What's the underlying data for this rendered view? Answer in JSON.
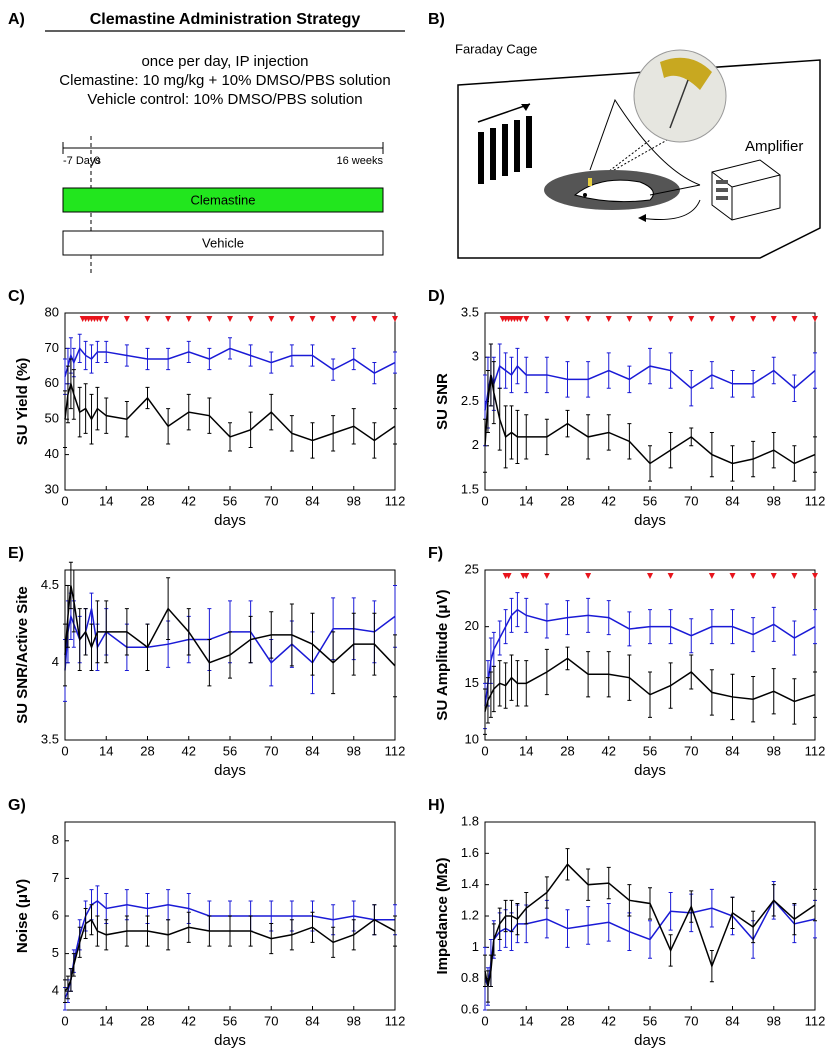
{
  "panel_a": {
    "label": "A)",
    "title": "Clemastine Administration Strategy",
    "lines": [
      "once per day, IP injection",
      "Clemastine: 10 mg/kg + 10% DMSO/PBS solution",
      "Vehicle control: 10% DMSO/PBS solution"
    ],
    "timeline": {
      "start": "-7 Days",
      "zero": "0",
      "end": "16 weeks"
    },
    "bars": [
      "Clemastine",
      "Vehicle"
    ]
  },
  "panel_b": {
    "label": "B)",
    "cage": "Faraday Cage",
    "amplifier": "Amplifier"
  },
  "chart_data": [
    {
      "type": "line",
      "panel_label": "C)",
      "y_label": "SU Yield (%)",
      "x_label": "days",
      "x": [
        0,
        1,
        2,
        3,
        5,
        7,
        9,
        11,
        14,
        21,
        28,
        35,
        42,
        49,
        56,
        63,
        70,
        77,
        84,
        91,
        98,
        105,
        112
      ],
      "xlim": [
        0,
        112
      ],
      "xticks": [
        0,
        14,
        28,
        42,
        56,
        70,
        84,
        98,
        112
      ],
      "ylim": [
        30,
        80
      ],
      "yticks": [
        30,
        40,
        50,
        60,
        70,
        80
      ],
      "series": [
        {
          "color": "#1a1ad6",
          "values": [
            62,
            65,
            68,
            66,
            70,
            68,
            67,
            69,
            69,
            68,
            67,
            67,
            69,
            67,
            70,
            68,
            66,
            68,
            68,
            64,
            67,
            63,
            66
          ],
          "errors": [
            5,
            5,
            5,
            4,
            4,
            4,
            4,
            3,
            3,
            3,
            3,
            3,
            3,
            3,
            3,
            3,
            3,
            3,
            3,
            3,
            3,
            3,
            3
          ]
        },
        {
          "color": "#000000",
          "values": [
            50,
            57,
            60,
            57,
            52,
            53,
            50,
            53,
            51,
            50,
            56,
            48,
            52,
            51,
            45,
            47,
            52,
            46,
            44,
            46,
            48,
            44,
            48
          ],
          "errors": [
            8,
            8,
            7,
            7,
            7,
            7,
            7,
            6,
            5,
            5,
            3,
            5,
            5,
            5,
            4,
            5,
            5,
            5,
            5,
            5,
            5,
            5,
            5
          ]
        }
      ],
      "markers": {
        "color": "#e8141c",
        "x": [
          6,
          7,
          8,
          9,
          10,
          11,
          12,
          14,
          21,
          28,
          35,
          42,
          49,
          56,
          63,
          70,
          77,
          84,
          91,
          98,
          105,
          112
        ]
      }
    },
    {
      "type": "line",
      "panel_label": "D)",
      "y_label": "SU SNR",
      "x_label": "days",
      "x": [
        0,
        1,
        2,
        3,
        5,
        7,
        9,
        11,
        14,
        21,
        28,
        35,
        42,
        49,
        56,
        63,
        70,
        77,
        84,
        91,
        98,
        105,
        112
      ],
      "xlim": [
        0,
        112
      ],
      "xticks": [
        0,
        14,
        28,
        42,
        56,
        70,
        84,
        98,
        112
      ],
      "ylim": [
        1.5,
        3.5
      ],
      "yticks": [
        1.5,
        2,
        2.5,
        3,
        3.5
      ],
      "series": [
        {
          "color": "#1a1ad6",
          "values": [
            2.4,
            2.6,
            2.8,
            2.7,
            2.9,
            2.85,
            2.8,
            2.9,
            2.8,
            2.8,
            2.75,
            2.75,
            2.85,
            2.75,
            2.9,
            2.85,
            2.65,
            2.8,
            2.7,
            2.7,
            2.85,
            2.65,
            2.85
          ],
          "errors": [
            0.4,
            0.4,
            0.35,
            0.3,
            0.25,
            0.2,
            0.2,
            0.2,
            0.2,
            0.2,
            0.2,
            0.2,
            0.2,
            0.15,
            0.2,
            0.2,
            0.2,
            0.15,
            0.15,
            0.15,
            0.15,
            0.15,
            0.2
          ]
        },
        {
          "color": "#000000",
          "values": [
            2.0,
            2.5,
            2.8,
            2.6,
            2.3,
            2.1,
            2.15,
            2.1,
            2.1,
            2.1,
            2.25,
            2.1,
            2.15,
            2.05,
            1.8,
            1.95,
            2.1,
            1.9,
            1.8,
            1.85,
            1.95,
            1.8,
            1.9
          ],
          "errors": [
            0.3,
            0.35,
            0.35,
            0.35,
            0.35,
            0.35,
            0.3,
            0.3,
            0.25,
            0.2,
            0.15,
            0.25,
            0.2,
            0.2,
            0.2,
            0.2,
            0.1,
            0.25,
            0.2,
            0.2,
            0.2,
            0.2,
            0.2
          ]
        }
      ],
      "markers": {
        "color": "#e8141c",
        "x": [
          6,
          7,
          8,
          9,
          10,
          11,
          12,
          14,
          21,
          28,
          35,
          42,
          49,
          56,
          63,
          70,
          77,
          84,
          91,
          98,
          105,
          112
        ]
      }
    },
    {
      "type": "line",
      "panel_label": "E)",
      "y_label": "SU SNR/Active Site",
      "x_label": "days",
      "x": [
        0,
        1,
        2,
        3,
        5,
        7,
        9,
        11,
        14,
        21,
        28,
        35,
        42,
        49,
        56,
        63,
        70,
        77,
        84,
        91,
        98,
        105,
        112
      ],
      "xlim": [
        0,
        112
      ],
      "xticks": [
        0,
        14,
        28,
        42,
        56,
        70,
        84,
        98,
        112
      ],
      "ylim": [
        3.5,
        4.6
      ],
      "yticks": [
        3.5,
        4,
        4.5
      ],
      "series": [
        {
          "color": "#1a1ad6",
          "values": [
            3.95,
            4.2,
            4.3,
            4.25,
            4.15,
            4.2,
            4.35,
            4.1,
            4.2,
            4.1,
            4.1,
            4.12,
            4.15,
            4.15,
            4.2,
            4.2,
            4.0,
            4.12,
            4.0,
            4.22,
            4.22,
            4.2,
            4.3
          ],
          "errors": [
            0.2,
            0.2,
            0.15,
            0.15,
            0.15,
            0.15,
            0.1,
            0.15,
            0.15,
            0.15,
            0.15,
            0.15,
            0.15,
            0.2,
            0.2,
            0.2,
            0.15,
            0.15,
            0.2,
            0.2,
            0.2,
            0.2,
            0.2
          ]
        },
        {
          "color": "#000000",
          "values": [
            4.05,
            4.3,
            4.5,
            4.4,
            4.15,
            4.2,
            4.1,
            4.2,
            4.2,
            4.2,
            4.1,
            4.35,
            4.2,
            4.0,
            4.05,
            4.15,
            4.18,
            4.18,
            4.12,
            4.0,
            4.12,
            4.12,
            3.98
          ],
          "errors": [
            0.2,
            0.2,
            0.15,
            0.2,
            0.2,
            0.15,
            0.15,
            0.2,
            0.2,
            0.15,
            0.15,
            0.2,
            0.15,
            0.15,
            0.15,
            0.15,
            0.15,
            0.2,
            0.2,
            0.2,
            0.2,
            0.2,
            0.2
          ]
        }
      ],
      "markers": {
        "color": "#e8141c",
        "x": []
      }
    },
    {
      "type": "line",
      "panel_label": "F)",
      "y_label": "SU Amplitude (μV)",
      "x_label": "days",
      "x": [
        0,
        1,
        2,
        3,
        5,
        7,
        9,
        11,
        14,
        21,
        28,
        35,
        42,
        49,
        56,
        63,
        70,
        77,
        84,
        91,
        98,
        105,
        112
      ],
      "xlim": [
        0,
        112
      ],
      "xticks": [
        0,
        14,
        28,
        42,
        56,
        70,
        84,
        98,
        112
      ],
      "ylim": [
        10,
        25
      ],
      "yticks": [
        10,
        15,
        20,
        25
      ],
      "series": [
        {
          "color": "#1a1ad6",
          "values": [
            13,
            15,
            17,
            18,
            19,
            20,
            21,
            21.5,
            21,
            20.5,
            20.8,
            21,
            20.8,
            19.8,
            20,
            20,
            19.2,
            20,
            20,
            19.3,
            20.2,
            19,
            20
          ],
          "errors": [
            2,
            2,
            2,
            1.5,
            1.5,
            1.5,
            1.5,
            1.5,
            1.5,
            1.5,
            1.5,
            1.5,
            1.5,
            1.5,
            1.5,
            1.5,
            1.5,
            1.5,
            1.5,
            1.5,
            1.5,
            1.5,
            1.5
          ]
        },
        {
          "color": "#000000",
          "values": [
            12.5,
            13.5,
            14,
            14.5,
            15,
            14.8,
            15.5,
            15,
            15,
            16,
            17.2,
            15.8,
            15.8,
            15.5,
            14,
            14.8,
            16,
            14.2,
            13.8,
            13.6,
            14.3,
            13.4,
            14
          ],
          "errors": [
            2,
            2,
            2,
            2,
            2,
            2,
            2,
            2,
            2,
            2,
            1,
            2,
            2,
            2,
            2,
            2,
            1.5,
            2,
            2,
            2,
            2,
            2,
            2
          ]
        }
      ],
      "markers": {
        "color": "#e8141c",
        "x": [
          7,
          8,
          13,
          14,
          21,
          35,
          56,
          63,
          77,
          84,
          91,
          98,
          105,
          112
        ]
      }
    },
    {
      "type": "line",
      "panel_label": "G)",
      "y_label": "Noise (μV)",
      "x_label": "days",
      "x": [
        0,
        1,
        2,
        3,
        5,
        7,
        9,
        11,
        14,
        21,
        28,
        35,
        42,
        49,
        56,
        63,
        70,
        77,
        84,
        91,
        98,
        105,
        112
      ],
      "xlim": [
        0,
        112
      ],
      "xticks": [
        0,
        14,
        28,
        42,
        56,
        70,
        84,
        98,
        112
      ],
      "ylim": [
        3.5,
        8.5
      ],
      "yticks": [
        4,
        5,
        6,
        7,
        8
      ],
      "series": [
        {
          "color": "#1a1ad6",
          "values": [
            3.8,
            4,
            4.3,
            4.8,
            5.5,
            6,
            6.3,
            6.4,
            6.2,
            6.3,
            6.2,
            6.3,
            6.2,
            6,
            6,
            6,
            6,
            6,
            6,
            5.9,
            6,
            5.9,
            5.9
          ],
          "errors": [
            0.3,
            0.3,
            0.3,
            0.3,
            0.4,
            0.4,
            0.4,
            0.4,
            0.4,
            0.4,
            0.4,
            0.4,
            0.4,
            0.4,
            0.4,
            0.4,
            0.4,
            0.4,
            0.4,
            0.4,
            0.4,
            0.4,
            0.4
          ]
        },
        {
          "color": "#000000",
          "values": [
            4,
            4.1,
            4.3,
            4.7,
            5.3,
            5.8,
            5.9,
            5.6,
            5.5,
            5.6,
            5.6,
            5.5,
            5.7,
            5.6,
            5.6,
            5.6,
            5.4,
            5.5,
            5.7,
            5.3,
            5.5,
            5.9,
            5.6
          ],
          "errors": [
            0.3,
            0.3,
            0.3,
            0.3,
            0.4,
            0.4,
            0.4,
            0.4,
            0.4,
            0.4,
            0.4,
            0.4,
            0.4,
            0.4,
            0.4,
            0.4,
            0.4,
            0.4,
            0.4,
            0.4,
            0.4,
            0.4,
            0.4
          ]
        }
      ],
      "markers": {
        "color": "#e8141c",
        "x": []
      }
    },
    {
      "type": "line",
      "panel_label": "H)",
      "y_label": "Impedance (MΩ)",
      "x_label": "days",
      "x": [
        0,
        1,
        2,
        3,
        5,
        7,
        9,
        11,
        14,
        21,
        28,
        35,
        42,
        49,
        56,
        63,
        70,
        77,
        84,
        91,
        98,
        105,
        112
      ],
      "xlim": [
        0,
        112
      ],
      "xticks": [
        0,
        14,
        28,
        42,
        56,
        70,
        84,
        98,
        112
      ],
      "ylim": [
        0.6,
        1.8
      ],
      "yticks": [
        0.6,
        0.8,
        1,
        1.2,
        1.4,
        1.6,
        1.8
      ],
      "series": [
        {
          "color": "#1a1ad6",
          "values": [
            0.8,
            0.75,
            0.9,
            1.05,
            1.1,
            1.12,
            1.1,
            1.15,
            1.15,
            1.18,
            1.12,
            1.14,
            1.16,
            1.1,
            1.05,
            1.23,
            1.22,
            1.25,
            1.2,
            1.05,
            1.3,
            1.15,
            1.18
          ],
          "errors": [
            0.2,
            0.12,
            0.15,
            0.12,
            0.12,
            0.12,
            0.12,
            0.12,
            0.12,
            0.12,
            0.12,
            0.12,
            0.12,
            0.12,
            0.12,
            0.12,
            0.12,
            0.12,
            0.12,
            0.12,
            0.12,
            0.12,
            0.12
          ]
        },
        {
          "color": "#000000",
          "values": [
            0.85,
            0.75,
            0.85,
            1.05,
            1.15,
            1.2,
            1.2,
            1.18,
            1.25,
            1.35,
            1.53,
            1.4,
            1.41,
            1.3,
            1.28,
            0.98,
            1.26,
            0.88,
            1.22,
            1.13,
            1.3,
            1.18,
            1.27
          ],
          "errors": [
            0.1,
            0.1,
            0.1,
            0.1,
            0.1,
            0.1,
            0.1,
            0.1,
            0.1,
            0.1,
            0.1,
            0.1,
            0.1,
            0.1,
            0.1,
            0.1,
            0.1,
            0.1,
            0.1,
            0.1,
            0.1,
            0.1,
            0.1
          ]
        }
      ],
      "markers": {
        "color": "#e8141c",
        "x": []
      }
    }
  ]
}
